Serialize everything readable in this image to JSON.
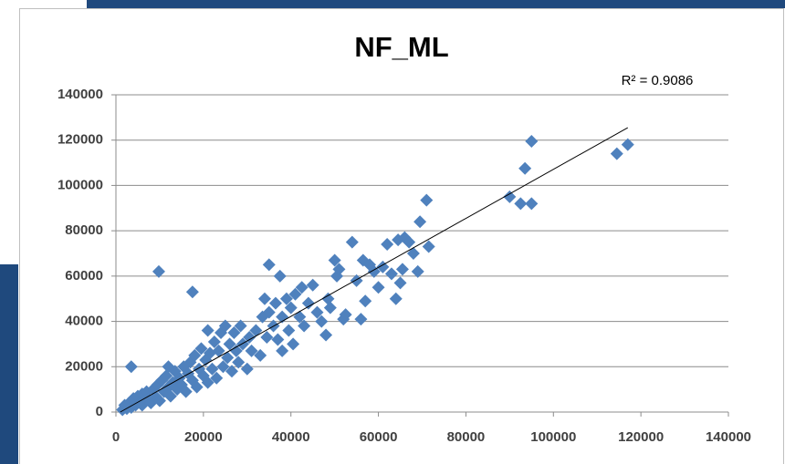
{
  "chart_data": {
    "type": "scatter",
    "title": "NF_ML",
    "annotation": "R² = 0.9086",
    "color": "#4f81bd",
    "x": [
      1500,
      2000,
      2500,
      3000,
      3500,
      3500,
      4000,
      4500,
      5000,
      5500,
      6000,
      6000,
      6500,
      7000,
      7500,
      8000,
      8500,
      9000,
      9500,
      9800,
      10000,
      10500,
      11000,
      11500,
      12000,
      12000,
      12500,
      13000,
      13500,
      14000,
      14500,
      15000,
      15500,
      16000,
      16500,
      17000,
      17500,
      17500,
      18000,
      18500,
      19000,
      19500,
      20000,
      20500,
      21000,
      21000,
      21500,
      22000,
      22500,
      23000,
      23500,
      24000,
      24500,
      25000,
      25500,
      26000,
      26500,
      27000,
      27500,
      28000,
      28500,
      29000,
      30000,
      30500,
      31000,
      32000,
      33000,
      33500,
      34000,
      34500,
      35000,
      35000,
      36000,
      36500,
      37000,
      37500,
      38000,
      38000,
      39000,
      39500,
      40000,
      40500,
      41000,
      42000,
      42500,
      43000,
      44000,
      45000,
      46000,
      47000,
      48000,
      48500,
      49000,
      50000,
      50500,
      51000,
      52000,
      52500,
      54000,
      55000,
      56000,
      56500,
      57000,
      58000,
      59000,
      60000,
      61000,
      62000,
      63000,
      64000,
      64500,
      65000,
      65500,
      66000,
      67000,
      68000,
      69000,
      69500,
      71000,
      71500,
      90000,
      92500,
      93500,
      95000,
      95000,
      114500,
      117000
    ],
    "y": [
      1000,
      3000,
      1500,
      4000,
      2000,
      20000,
      6000,
      3000,
      7000,
      4000,
      8000,
      3000,
      5000,
      9000,
      6000,
      4000,
      10000,
      7000,
      12000,
      62000,
      5000,
      14000,
      9000,
      16000,
      11000,
      20000,
      7000,
      13000,
      18000,
      10000,
      15000,
      12000,
      20000,
      9000,
      17000,
      22000,
      53000,
      14000,
      25000,
      11000,
      19000,
      28000,
      16000,
      23000,
      36000,
      13000,
      26000,
      19000,
      31000,
      15000,
      27000,
      35000,
      20000,
      38000,
      24000,
      30000,
      18000,
      35000,
      27000,
      22000,
      38000,
      30000,
      19000,
      33000,
      27000,
      36000,
      25000,
      42000,
      50000,
      33000,
      65000,
      44000,
      38000,
      48000,
      32000,
      60000,
      42000,
      27000,
      50000,
      36000,
      46000,
      30000,
      52000,
      42000,
      55000,
      38000,
      48000,
      56000,
      44000,
      40000,
      34000,
      50000,
      46000,
      67000,
      60000,
      63000,
      41000,
      43000,
      75000,
      58000,
      41000,
      67000,
      49000,
      65000,
      62000,
      55000,
      64000,
      74000,
      61000,
      50000,
      76000,
      57000,
      63000,
      77000,
      75000,
      70000,
      62000,
      84000,
      93500,
      73000,
      95000,
      92000,
      107500,
      92000,
      119500,
      114000,
      118000
    ],
    "trendline": {
      "x": [
        1000,
        117000
      ],
      "y": [
        0,
        125500
      ],
      "color": "#000000"
    },
    "xlim": [
      0,
      140000
    ],
    "ylim": [
      0,
      140000
    ],
    "xticks": [
      0,
      20000,
      40000,
      60000,
      80000,
      100000,
      120000,
      140000
    ],
    "yticks": [
      0,
      20000,
      40000,
      60000,
      80000,
      100000,
      120000,
      140000
    ],
    "grid": true
  }
}
